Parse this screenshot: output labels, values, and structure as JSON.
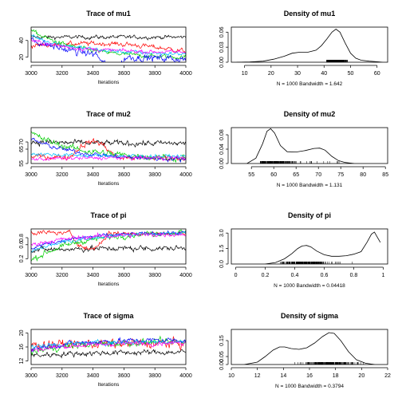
{
  "chart_data": [
    {
      "type": "line",
      "kind": "trace",
      "title": "Trace of mu1",
      "xlabel": "Iterations",
      "xlim": [
        3000,
        4000
      ],
      "ylim": [
        14,
        56
      ],
      "xticks": [
        3000,
        3200,
        3400,
        3600,
        3800,
        4000
      ],
      "yticks": [
        20,
        40
      ],
      "series": [
        {
          "color": "#000000",
          "start": 44,
          "end": 44,
          "vol": 1.8
        },
        {
          "color": "#ff0000",
          "start": 34,
          "end": 27,
          "vol": 2.2,
          "bend": 8
        },
        {
          "color": "#00cd00",
          "start": 52,
          "end": 20,
          "vol": 2.0
        },
        {
          "color": "#0000ff",
          "start": 42,
          "end": 18,
          "vol": 3.5,
          "dip": [
            3420,
            3620,
            14
          ]
        },
        {
          "color": "#00bfff",
          "start": 46,
          "end": 24,
          "vol": 2.0
        },
        {
          "color": "#ff00ff",
          "start": 40,
          "end": 26,
          "vol": 1.8
        }
      ]
    },
    {
      "type": "line",
      "kind": "density",
      "title": "Density of mu1",
      "xlim": [
        5,
        64
      ],
      "ylim": [
        0,
        0.07
      ],
      "xticks": [
        10,
        20,
        30,
        40,
        50,
        60
      ],
      "yticks": [
        0.0,
        0.03,
        0.06
      ],
      "ytick_labels": [
        "0.00",
        "0.03",
        "0.06"
      ],
      "n_label": "N = 1000   Bandwidth = 1.642",
      "curve_x": [
        7,
        12,
        17,
        21,
        25,
        28,
        31,
        34,
        37,
        39,
        41,
        43,
        44.5,
        46,
        48,
        50,
        52,
        54,
        57,
        60,
        62
      ],
      "curve_y": [
        0.0,
        0.0005,
        0.002,
        0.006,
        0.012,
        0.018,
        0.02,
        0.02,
        0.024,
        0.033,
        0.046,
        0.06,
        0.066,
        0.06,
        0.038,
        0.018,
        0.008,
        0.004,
        0.002,
        0.001,
        0.0
      ],
      "rug": {
        "from": 38,
        "to": 52,
        "peak": 45
      }
    },
    {
      "type": "line",
      "kind": "trace",
      "title": "Trace of mu2",
      "xlabel": "Iterations",
      "xlim": [
        3000,
        4000
      ],
      "ylim": [
        55,
        80
      ],
      "xticks": [
        3000,
        3200,
        3400,
        3600,
        3800,
        4000
      ],
      "yticks": [
        55,
        65,
        70
      ],
      "series": [
        {
          "color": "#000000",
          "start": 70,
          "end": 69,
          "vol": 1.6
        },
        {
          "color": "#ff0000",
          "start": 60,
          "end": 59,
          "vol": 1.5,
          "bump": [
            3250,
            3550,
            11
          ]
        },
        {
          "color": "#00cd00",
          "start": 76,
          "end": 59,
          "vol": 1.8
        },
        {
          "color": "#0000ff",
          "start": 72,
          "end": 58,
          "vol": 1.2
        },
        {
          "color": "#00bfff",
          "start": 62,
          "end": 60,
          "vol": 1.0
        },
        {
          "color": "#ff00ff",
          "start": 58,
          "end": 59,
          "vol": 1.0
        }
      ]
    },
    {
      "type": "line",
      "kind": "density",
      "title": "Density of mu2",
      "xlim": [
        50.5,
        85.5
      ],
      "ylim": [
        0,
        0.1
      ],
      "xticks": [
        55,
        60,
        65,
        70,
        75,
        80,
        85
      ],
      "yticks": [
        0.0,
        0.04,
        0.08
      ],
      "ytick_labels": [
        "0.00",
        "0.04",
        "0.08"
      ],
      "n_label": "N = 1000   Bandwidth = 1.131",
      "curve_x": [
        54,
        56,
        57.5,
        58.5,
        59.3,
        60.2,
        61.5,
        63,
        65,
        67,
        69,
        70.3,
        71.5,
        73,
        74.5,
        76,
        78
      ],
      "curve_y": [
        0.0,
        0.015,
        0.055,
        0.09,
        0.097,
        0.085,
        0.05,
        0.033,
        0.032,
        0.036,
        0.042,
        0.043,
        0.037,
        0.02,
        0.008,
        0.003,
        0.0
      ],
      "rug": {
        "from": 57,
        "to": 75,
        "peak": 60
      }
    },
    {
      "type": "line",
      "kind": "trace",
      "title": "Trace of pi",
      "xlabel": "Iterations",
      "xlim": [
        3000,
        4000
      ],
      "ylim": [
        0.05,
        1.05
      ],
      "xticks": [
        3000,
        3200,
        3400,
        3600,
        3800,
        4000
      ],
      "yticks": [
        0.2,
        0.6,
        0.8
      ],
      "series": [
        {
          "color": "#000000",
          "start": 0.45,
          "end": 0.5,
          "vol": 0.06
        },
        {
          "color": "#ff0000",
          "start": 0.95,
          "end": 0.92,
          "vol": 0.05,
          "dip": [
            3250,
            3500,
            0.45
          ]
        },
        {
          "color": "#00cd00",
          "start": 0.15,
          "end": 0.95,
          "vol": 0.06
        },
        {
          "color": "#0000ff",
          "start": 0.5,
          "end": 0.94,
          "vol": 0.04
        },
        {
          "color": "#00bfff",
          "start": 0.4,
          "end": 0.93,
          "vol": 0.04
        },
        {
          "color": "#ff00ff",
          "start": 0.6,
          "end": 0.9,
          "vol": 0.05
        }
      ]
    },
    {
      "type": "line",
      "kind": "density",
      "title": "Density of pi",
      "xlim": [
        -0.03,
        1.03
      ],
      "ylim": [
        0,
        3.4
      ],
      "xticks": [
        0.0,
        0.2,
        0.4,
        0.6,
        0.8,
        1.0
      ],
      "yticks": [
        0.0,
        1.5,
        3.0
      ],
      "ytick_labels": [
        "0.0",
        "1.5",
        "3.0"
      ],
      "n_label": "N = 1000   Bandwidth = 0.04418",
      "curve_x": [
        0.2,
        0.27,
        0.33,
        0.38,
        0.42,
        0.45,
        0.48,
        0.51,
        0.55,
        0.6,
        0.65,
        0.7,
        0.75,
        0.8,
        0.85,
        0.89,
        0.92,
        0.94,
        0.96,
        0.98
      ],
      "curve_y": [
        0.0,
        0.15,
        0.5,
        1.0,
        1.5,
        1.75,
        1.8,
        1.65,
        1.25,
        0.9,
        0.75,
        0.75,
        0.8,
        0.95,
        1.2,
        2.1,
        2.9,
        3.1,
        2.6,
        2.1
      ],
      "rug": {
        "from": 0.3,
        "to": 0.97,
        "peak": 0.47
      }
    },
    {
      "type": "line",
      "kind": "trace",
      "title": "Trace of sigma",
      "xlabel": "Iterations",
      "xlim": [
        3000,
        4000
      ],
      "ylim": [
        11,
        21
      ],
      "xticks": [
        3000,
        3200,
        3400,
        3600,
        3800,
        4000
      ],
      "yticks": [
        12,
        16,
        20
      ],
      "series": [
        {
          "color": "#000000",
          "start": 13.5,
          "end": 14.5,
          "vol": 0.6
        },
        {
          "color": "#ff0000",
          "start": 16.5,
          "end": 17,
          "vol": 1.0
        },
        {
          "color": "#00cd00",
          "start": 14.5,
          "end": 17.5,
          "vol": 0.7
        },
        {
          "color": "#0000ff",
          "start": 15.5,
          "end": 18,
          "vol": 0.6
        },
        {
          "color": "#00bfff",
          "start": 16,
          "end": 17.5,
          "vol": 0.5
        },
        {
          "color": "#ff00ff",
          "start": 15,
          "end": 17.2,
          "vol": 0.5
        }
      ]
    },
    {
      "type": "line",
      "kind": "density",
      "title": "Density of sigma",
      "xlim": [
        10,
        22
      ],
      "ylim": [
        0,
        0.22
      ],
      "xticks": [
        10,
        12,
        14,
        16,
        18,
        20,
        22
      ],
      "yticks": [
        0.0,
        0.05,
        0.15
      ],
      "ytick_labels": [
        "0.00",
        "0.05",
        "0.15"
      ],
      "n_label": "N = 1000   Bandwidth = 0.3794",
      "curve_x": [
        11,
        12,
        12.6,
        13.2,
        13.7,
        14.1,
        14.6,
        15.2,
        15.8,
        16.4,
        17,
        17.5,
        17.9,
        18.4,
        19,
        19.6,
        20.3,
        21
      ],
      "curve_y": [
        0.0,
        0.015,
        0.05,
        0.09,
        0.11,
        0.11,
        0.1,
        0.095,
        0.105,
        0.135,
        0.175,
        0.2,
        0.195,
        0.15,
        0.08,
        0.03,
        0.008,
        0.0
      ],
      "rug": {
        "from": 12,
        "to": 20.5,
        "peak": 17.5
      }
    }
  ]
}
